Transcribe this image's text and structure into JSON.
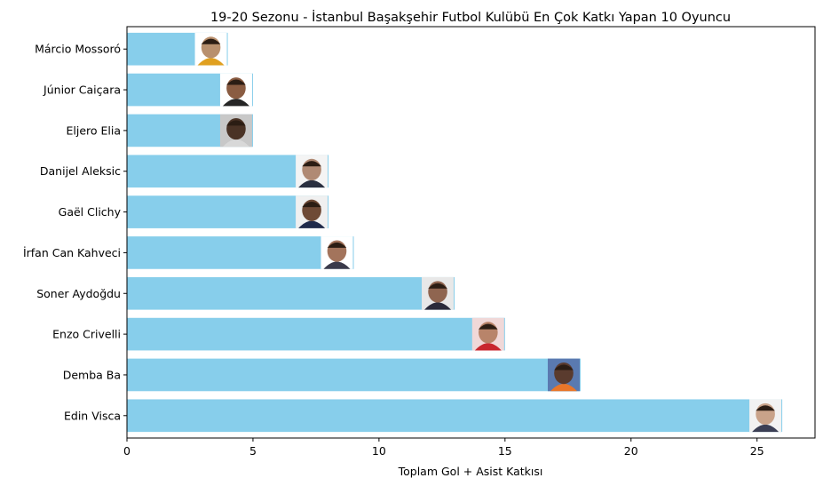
{
  "chart_data": {
    "type": "bar",
    "orientation": "horizontal",
    "title": "19-20 Sezonu - İstanbul Başakşehir Futbol Kulübü En Çok Katkı Yapan 10 Oyuncu",
    "xlabel": "Toplam Gol + Asist Katkısı",
    "ylabel": "",
    "xlim": [
      0,
      27.3
    ],
    "xticks": [
      0,
      5,
      10,
      15,
      20,
      25
    ],
    "bar_color": "#87ceeb",
    "grid": false,
    "categories": [
      "Edin Visca",
      "Demba Ba",
      "Enzo Crivelli",
      "Soner Aydoğdu",
      "İrfan Can Kahveci",
      "Gaël Clichy",
      "Danijel Aleksic",
      "Eljero Elia",
      "Júnior Caiçara",
      "Márcio Mossoró"
    ],
    "values": [
      26,
      18,
      15,
      13,
      9,
      8,
      8,
      5,
      5,
      4
    ],
    "avatar_colors": [
      "#c9a38a",
      "#5a3b2e",
      "#b8846a",
      "#8f6550",
      "#a3745c",
      "#6e4a36",
      "#b08a74",
      "#4a3326",
      "#8a5c42",
      "#b8906e"
    ],
    "avatar_shirt_colors": [
      "#3b3f55",
      "#e8762a",
      "#c8262e",
      "#2a2a3a",
      "#3a3a4a",
      "#1f2a4a",
      "#2a3040",
      "#d8d8d8",
      "#262626",
      "#e0a020"
    ],
    "avatar_bg_colors": [
      "#f2f2f2",
      "#5a7ab0",
      "#f0d8d8",
      "#e8e8e8",
      "#ffffff",
      "#f0f0f0",
      "#f4f4f4",
      "#c8c8c8",
      "#ffffff",
      "#ffffff"
    ]
  }
}
